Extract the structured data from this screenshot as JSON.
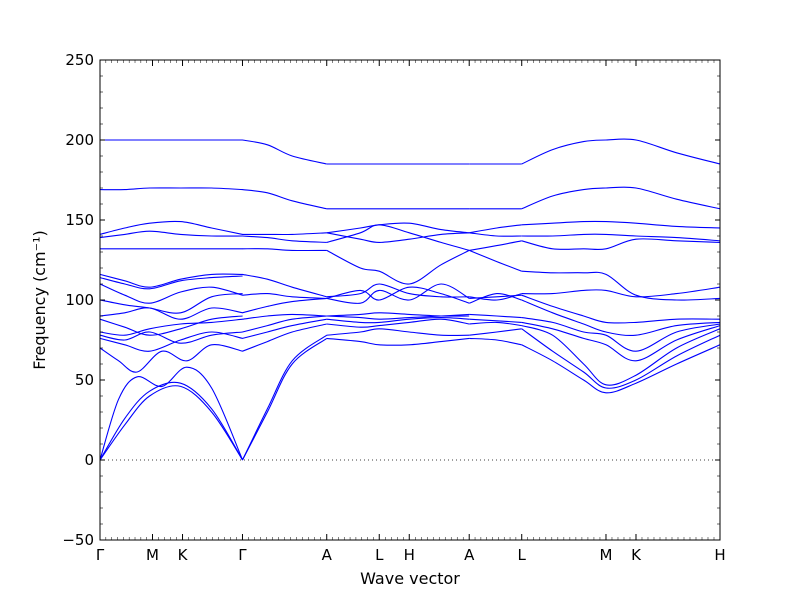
{
  "chart_data": {
    "type": "line",
    "title": "",
    "xlabel": "Wave vector",
    "ylabel": "Frequency (cm⁻¹)",
    "ylim": [
      -50,
      250
    ],
    "yticks": [
      "−50",
      "0",
      "50",
      "100",
      "150",
      "200",
      "250"
    ],
    "ytick_values": [
      -50,
      0,
      50,
      100,
      150,
      200,
      250
    ],
    "x_path": {
      "labels": [
        "Γ",
        "M",
        "K",
        "Γ",
        "A",
        "L",
        "H",
        "A",
        "L",
        "M",
        "K",
        "H"
      ],
      "positions": [
        0,
        0.0847,
        0.1331,
        0.2298,
        0.3657,
        0.4504,
        0.4988,
        0.5955,
        0.6802,
        0.8161,
        0.8645,
        1.0
      ]
    },
    "zero_line": {
      "y": 0,
      "style": "dotted"
    },
    "series_color": "#0000ff",
    "bands": [
      {
        "x": [
          0,
          0.04,
          0.08,
          0.13,
          0.18,
          0.23
        ],
        "y": [
          0,
          22,
          40,
          46,
          30,
          0
        ]
      },
      {
        "x": [
          0,
          0.04,
          0.08,
          0.13,
          0.18,
          0.23
        ],
        "y": [
          0,
          26,
          43,
          48,
          32,
          0
        ]
      },
      {
        "x": [
          0,
          0.03,
          0.06,
          0.1,
          0.14,
          0.18,
          0.23
        ],
        "y": [
          0,
          38,
          52,
          46,
          58,
          45,
          0
        ]
      },
      {
        "x": [
          0,
          0.03,
          0.06,
          0.1,
          0.14,
          0.18,
          0.23
        ],
        "y": [
          70,
          62,
          55,
          68,
          62,
          72,
          68
        ]
      },
      {
        "x": [
          0,
          0.04,
          0.08,
          0.13,
          0.18,
          0.23
        ],
        "y": [
          76,
          72,
          68,
          75,
          80,
          76
        ]
      },
      {
        "x": [
          0,
          0.04,
          0.08,
          0.13,
          0.18,
          0.23
        ],
        "y": [
          78,
          75,
          80,
          73,
          78,
          80
        ]
      },
      {
        "x": [
          0,
          0.04,
          0.08,
          0.13,
          0.18,
          0.23
        ],
        "y": [
          80,
          78,
          82,
          85,
          86,
          88
        ]
      },
      {
        "x": [
          0,
          0.04,
          0.08,
          0.13,
          0.18,
          0.23
        ],
        "y": [
          88,
          83,
          78,
          82,
          88,
          90
        ]
      },
      {
        "x": [
          0,
          0.04,
          0.08,
          0.13,
          0.18,
          0.23
        ],
        "y": [
          90,
          92,
          95,
          88,
          95,
          92
        ]
      },
      {
        "x": [
          0,
          0.04,
          0.08,
          0.13,
          0.18,
          0.23
        ],
        "y": [
          100,
          97,
          95,
          92,
          102,
          104
        ]
      },
      {
        "x": [
          0,
          0.04,
          0.08,
          0.13,
          0.18,
          0.23
        ],
        "y": [
          110,
          103,
          98,
          105,
          108,
          103
        ]
      },
      {
        "x": [
          0,
          0.04,
          0.08,
          0.13,
          0.18,
          0.23
        ],
        "y": [
          114,
          110,
          107,
          112,
          114,
          115
        ]
      },
      {
        "x": [
          0,
          0.04,
          0.08,
          0.13,
          0.18,
          0.23
        ],
        "y": [
          116,
          112,
          108,
          113,
          116,
          116
        ]
      },
      {
        "x": [
          0,
          0.04,
          0.08,
          0.13,
          0.18,
          0.23
        ],
        "y": [
          132,
          132,
          132,
          132,
          132,
          132
        ]
      },
      {
        "x": [
          0,
          0.04,
          0.08,
          0.13,
          0.18,
          0.23
        ],
        "y": [
          139,
          141,
          143,
          141,
          140,
          140
        ]
      },
      {
        "x": [
          0,
          0.04,
          0.08,
          0.13,
          0.18,
          0.23
        ],
        "y": [
          141,
          145,
          148,
          149,
          145,
          141
        ]
      },
      {
        "x": [
          0,
          0.04,
          0.08,
          0.13,
          0.18,
          0.23
        ],
        "y": [
          169,
          169,
          170,
          170,
          170,
          169
        ]
      },
      {
        "x": [
          0,
          0.04,
          0.08,
          0.13,
          0.18,
          0.23
        ],
        "y": [
          200,
          200,
          200,
          200,
          200,
          200
        ]
      },
      {
        "x": [
          0.2298,
          0.27,
          0.31,
          0.3657
        ],
        "y": [
          0,
          30,
          60,
          76
        ]
      },
      {
        "x": [
          0.2298,
          0.27,
          0.31,
          0.3657
        ],
        "y": [
          0,
          32,
          62,
          78
        ]
      },
      {
        "x": [
          0.2298,
          0.27,
          0.31,
          0.3657
        ],
        "y": [
          68,
          74,
          80,
          85
        ]
      },
      {
        "x": [
          0.2298,
          0.27,
          0.31,
          0.3657
        ],
        "y": [
          76,
          80,
          84,
          88
        ]
      },
      {
        "x": [
          0.2298,
          0.27,
          0.31,
          0.3657
        ],
        "y": [
          80,
          84,
          88,
          90
        ]
      },
      {
        "x": [
          0.2298,
          0.27,
          0.31,
          0.3657
        ],
        "y": [
          88,
          90,
          91,
          90
        ]
      },
      {
        "x": [
          0.2298,
          0.27,
          0.31,
          0.3657
        ],
        "y": [
          92,
          96,
          99,
          101
        ]
      },
      {
        "x": [
          0.2298,
          0.27,
          0.31,
          0.3657
        ],
        "y": [
          103,
          104,
          102,
          101
        ]
      },
      {
        "x": [
          0.2298,
          0.27,
          0.31,
          0.3657
        ],
        "y": [
          116,
          113,
          108,
          102
        ]
      },
      {
        "x": [
          0.2298,
          0.27,
          0.31,
          0.3657
        ],
        "y": [
          132,
          132,
          131,
          131
        ]
      },
      {
        "x": [
          0.2298,
          0.27,
          0.31,
          0.3657
        ],
        "y": [
          140,
          139,
          137,
          136
        ]
      },
      {
        "x": [
          0.2298,
          0.27,
          0.31,
          0.3657
        ],
        "y": [
          141,
          141,
          141,
          142
        ]
      },
      {
        "x": [
          0.2298,
          0.27,
          0.31,
          0.3657
        ],
        "y": [
          169,
          167,
          162,
          157
        ]
      },
      {
        "x": [
          0.2298,
          0.27,
          0.31,
          0.3657
        ],
        "y": [
          200,
          197,
          190,
          185
        ]
      },
      {
        "x": [
          0.3657,
          0.42,
          0.4504,
          0.4988,
          0.55,
          0.5955
        ],
        "y": [
          76,
          74,
          72,
          72,
          74,
          76
        ]
      },
      {
        "x": [
          0.3657,
          0.42,
          0.4504,
          0.4988,
          0.55,
          0.5955
        ],
        "y": [
          78,
          80,
          82,
          80,
          78,
          78
        ]
      },
      {
        "x": [
          0.3657,
          0.42,
          0.4504,
          0.4988,
          0.55,
          0.5955
        ],
        "y": [
          85,
          83,
          84,
          86,
          88,
          85
        ]
      },
      {
        "x": [
          0.3657,
          0.42,
          0.4504,
          0.4988,
          0.55,
          0.5955
        ],
        "y": [
          88,
          86,
          86,
          88,
          89,
          88
        ]
      },
      {
        "x": [
          0.3657,
          0.42,
          0.4504,
          0.4988,
          0.55,
          0.5955
        ],
        "y": [
          90,
          89,
          88,
          89,
          90,
          91
        ]
      },
      {
        "x": [
          0.3657,
          0.42,
          0.4504,
          0.4988,
          0.55,
          0.5955
        ],
        "y": [
          90,
          91,
          92,
          91,
          90,
          90
        ]
      },
      {
        "x": [
          0.3657,
          0.42,
          0.4504,
          0.4988,
          0.55,
          0.5955
        ],
        "y": [
          101,
          106,
          100,
          108,
          104,
          98
        ]
      },
      {
        "x": [
          0.3657,
          0.42,
          0.4504,
          0.4988,
          0.55,
          0.5955
        ],
        "y": [
          101,
          98,
          106,
          100,
          110,
          101
        ]
      },
      {
        "x": [
          0.3657,
          0.42,
          0.4504,
          0.4988,
          0.55,
          0.5955
        ],
        "y": [
          102,
          104,
          110,
          104,
          102,
          102
        ]
      },
      {
        "x": [
          0.3657,
          0.42,
          0.4504,
          0.4988,
          0.55,
          0.5955
        ],
        "y": [
          131,
          120,
          118,
          110,
          122,
          131
        ]
      },
      {
        "x": [
          0.3657,
          0.42,
          0.4504,
          0.4988,
          0.55,
          0.5955
        ],
        "y": [
          136,
          142,
          147,
          142,
          136,
          131
        ]
      },
      {
        "x": [
          0.3657,
          0.42,
          0.4504,
          0.4988,
          0.55,
          0.5955
        ],
        "y": [
          142,
          138,
          136,
          138,
          141,
          142
        ]
      },
      {
        "x": [
          0.3657,
          0.42,
          0.4504,
          0.4988,
          0.55,
          0.5955
        ],
        "y": [
          142,
          145,
          147,
          148,
          144,
          142
        ]
      },
      {
        "x": [
          0.3657,
          0.4504,
          0.5955
        ],
        "y": [
          157,
          157,
          157
        ]
      },
      {
        "x": [
          0.3657,
          0.4504,
          0.5955
        ],
        "y": [
          185,
          185,
          185
        ]
      },
      {
        "x": [
          0.5955,
          0.64,
          0.6802
        ],
        "y": [
          76,
          75,
          72
        ]
      },
      {
        "x": [
          0.5955,
          0.64,
          0.6802
        ],
        "y": [
          78,
          80,
          82
        ]
      },
      {
        "x": [
          0.5955,
          0.64,
          0.6802
        ],
        "y": [
          85,
          86,
          84
        ]
      },
      {
        "x": [
          0.5955,
          0.64,
          0.6802
        ],
        "y": [
          88,
          87,
          86
        ]
      },
      {
        "x": [
          0.5955,
          0.64,
          0.6802
        ],
        "y": [
          91,
          90,
          89
        ]
      },
      {
        "x": [
          0.5955,
          0.64,
          0.6802
        ],
        "y": [
          98,
          104,
          100
        ]
      },
      {
        "x": [
          0.5955,
          0.64,
          0.6802
        ],
        "y": [
          101,
          102,
          103
        ]
      },
      {
        "x": [
          0.5955,
          0.64,
          0.6802
        ],
        "y": [
          102,
          100,
          104
        ]
      },
      {
        "x": [
          0.5955,
          0.64,
          0.6802
        ],
        "y": [
          131,
          124,
          118
        ]
      },
      {
        "x": [
          0.5955,
          0.64,
          0.6802
        ],
        "y": [
          131,
          134,
          137
        ]
      },
      {
        "x": [
          0.5955,
          0.64,
          0.6802
        ],
        "y": [
          142,
          140,
          140
        ]
      },
      {
        "x": [
          0.5955,
          0.64,
          0.6802
        ],
        "y": [
          142,
          145,
          147
        ]
      },
      {
        "x": [
          0.5955,
          0.6802
        ],
        "y": [
          157,
          157
        ]
      },
      {
        "x": [
          0.5955,
          0.6802
        ],
        "y": [
          185,
          185
        ]
      },
      {
        "x": [
          0.6802,
          0.73,
          0.78,
          0.8161,
          0.8645,
          0.93,
          1.0
        ],
        "y": [
          72,
          62,
          50,
          42,
          48,
          60,
          72
        ]
      },
      {
        "x": [
          0.6802,
          0.73,
          0.78,
          0.8161,
          0.8645,
          0.93,
          1.0
        ],
        "y": [
          82,
          68,
          55,
          45,
          50,
          65,
          78
        ]
      },
      {
        "x": [
          0.6802,
          0.73,
          0.78,
          0.8161,
          0.8645,
          0.93,
          1.0
        ],
        "y": [
          84,
          78,
          60,
          47,
          53,
          70,
          82
        ]
      },
      {
        "x": [
          0.6802,
          0.73,
          0.78,
          0.8161,
          0.8645,
          0.93,
          1.0
        ],
        "y": [
          86,
          82,
          76,
          72,
          62,
          75,
          84
        ]
      },
      {
        "x": [
          0.6802,
          0.73,
          0.78,
          0.8161,
          0.8645,
          0.93,
          1.0
        ],
        "y": [
          89,
          86,
          80,
          78,
          68,
          80,
          85
        ]
      },
      {
        "x": [
          0.6802,
          0.73,
          0.78,
          0.8161,
          0.8645,
          0.93,
          1.0
        ],
        "y": [
          100,
          92,
          85,
          80,
          78,
          84,
          86
        ]
      },
      {
        "x": [
          0.6802,
          0.73,
          0.78,
          0.8161,
          0.8645,
          0.93,
          1.0
        ],
        "y": [
          103,
          96,
          90,
          86,
          86,
          88,
          88
        ]
      },
      {
        "x": [
          0.6802,
          0.73,
          0.78,
          0.8161,
          0.8645,
          0.93,
          1.0
        ],
        "y": [
          104,
          104,
          106,
          106,
          102,
          104,
          108
        ]
      },
      {
        "x": [
          0.6802,
          0.73,
          0.78,
          0.8161,
          0.8645,
          0.93,
          1.0
        ],
        "y": [
          118,
          117,
          117,
          116,
          103,
          100,
          101
        ]
      },
      {
        "x": [
          0.6802,
          0.73,
          0.78,
          0.8161,
          0.8645,
          0.93,
          1.0
        ],
        "y": [
          137,
          132,
          132,
          132,
          138,
          137,
          136
        ]
      },
      {
        "x": [
          0.6802,
          0.73,
          0.78,
          0.8161,
          0.8645,
          0.93,
          1.0
        ],
        "y": [
          140,
          140,
          141,
          141,
          140,
          139,
          137
        ]
      },
      {
        "x": [
          0.6802,
          0.73,
          0.78,
          0.8161,
          0.8645,
          0.93,
          1.0
        ],
        "y": [
          147,
          148,
          149,
          149,
          148,
          146,
          145
        ]
      },
      {
        "x": [
          0.6802,
          0.73,
          0.78,
          0.8161,
          0.8645,
          0.93,
          1.0
        ],
        "y": [
          157,
          165,
          169,
          170,
          170,
          163,
          157
        ]
      },
      {
        "x": [
          0.6802,
          0.73,
          0.78,
          0.8161,
          0.8645,
          0.93,
          1.0
        ],
        "y": [
          185,
          194,
          199,
          200,
          200,
          192,
          185
        ]
      }
    ]
  }
}
